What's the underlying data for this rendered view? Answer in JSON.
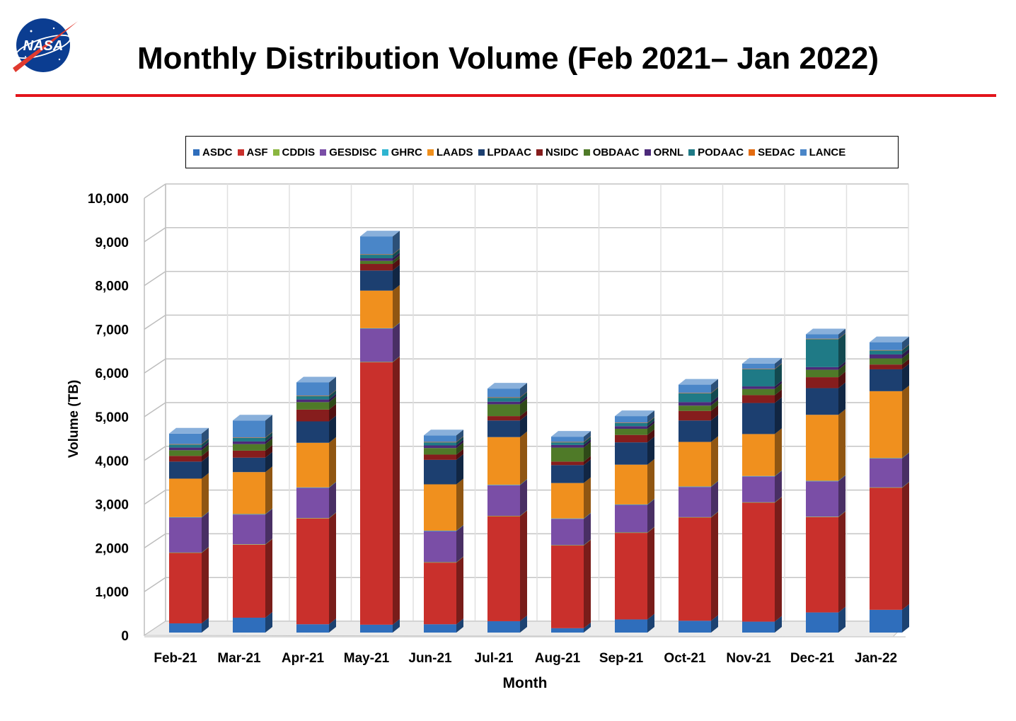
{
  "page": {
    "title": "Monthly Distribution Volume (Feb 2021– Jan 2022)",
    "logo_text": "NASA",
    "rule_color": "#e3141b"
  },
  "chart_data": {
    "type": "bar",
    "stacked": true,
    "three_d": true,
    "xlabel": "Month",
    "ylabel": "Volume (TB)",
    "ylim": [
      0,
      10000
    ],
    "ytick_step": 1000,
    "grid": true,
    "legend_position": "top",
    "categories": [
      "Feb-21",
      "Mar-21",
      "Apr-21",
      "May-21",
      "Jun-21",
      "Jul-21",
      "Aug-21",
      "Sep-21",
      "Oct-21",
      "Nov-21",
      "Dec-21",
      "Jan-22"
    ],
    "series": [
      {
        "name": "ASDC",
        "color": "#2f6ebc",
        "values": [
          210,
          340,
          190,
          180,
          190,
          260,
          100,
          300,
          270,
          250,
          460,
          520
        ]
      },
      {
        "name": "ASF",
        "color": "#c9302c",
        "values": [
          1610,
          1670,
          2420,
          6000,
          1410,
          2400,
          1890,
          1980,
          2360,
          2720,
          2180,
          2790
        ]
      },
      {
        "name": "CDDIS",
        "color": "#8ab640",
        "values": [
          10,
          10,
          10,
          10,
          10,
          10,
          10,
          10,
          10,
          10,
          10,
          10
        ]
      },
      {
        "name": "GESDISC",
        "color": "#7a4ea6",
        "values": [
          800,
          680,
          690,
          760,
          710,
          700,
          600,
          630,
          690,
          590,
          810,
          660
        ]
      },
      {
        "name": "GHRC",
        "color": "#2fb5d0",
        "values": [
          10,
          10,
          10,
          10,
          10,
          10,
          10,
          10,
          10,
          10,
          10,
          10
        ]
      },
      {
        "name": "LAADS",
        "color": "#f0901e",
        "values": [
          880,
          960,
          1020,
          860,
          1060,
          1090,
          810,
          910,
          1020,
          960,
          1510,
          1530
        ]
      },
      {
        "name": "LPDAAC",
        "color": "#1c3f70",
        "values": [
          390,
          330,
          490,
          460,
          560,
          380,
          410,
          510,
          490,
          710,
          610,
          500
        ]
      },
      {
        "name": "NSIDC",
        "color": "#861d1d",
        "values": [
          130,
          160,
          270,
          150,
          120,
          100,
          80,
          170,
          220,
          180,
          250,
          110
        ]
      },
      {
        "name": "OBDAAC",
        "color": "#4f7a28",
        "values": [
          130,
          150,
          170,
          70,
          150,
          270,
          320,
          140,
          120,
          140,
          170,
          140
        ]
      },
      {
        "name": "ORNL",
        "color": "#4c2a7a",
        "values": [
          60,
          60,
          60,
          60,
          60,
          60,
          60,
          60,
          80,
          60,
          60,
          90
        ]
      },
      {
        "name": "PODAAC",
        "color": "#1f7a86",
        "values": [
          70,
          80,
          80,
          80,
          70,
          90,
          60,
          70,
          200,
          390,
          640,
          90
        ]
      },
      {
        "name": "SEDAC",
        "color": "#e36b10",
        "values": [
          10,
          10,
          10,
          10,
          10,
          10,
          10,
          10,
          10,
          10,
          10,
          10
        ]
      },
      {
        "name": "LANCE",
        "color": "#4a86c8",
        "values": [
          240,
          390,
          300,
          410,
          150,
          200,
          120,
          150,
          190,
          120,
          100,
          180
        ]
      }
    ]
  }
}
